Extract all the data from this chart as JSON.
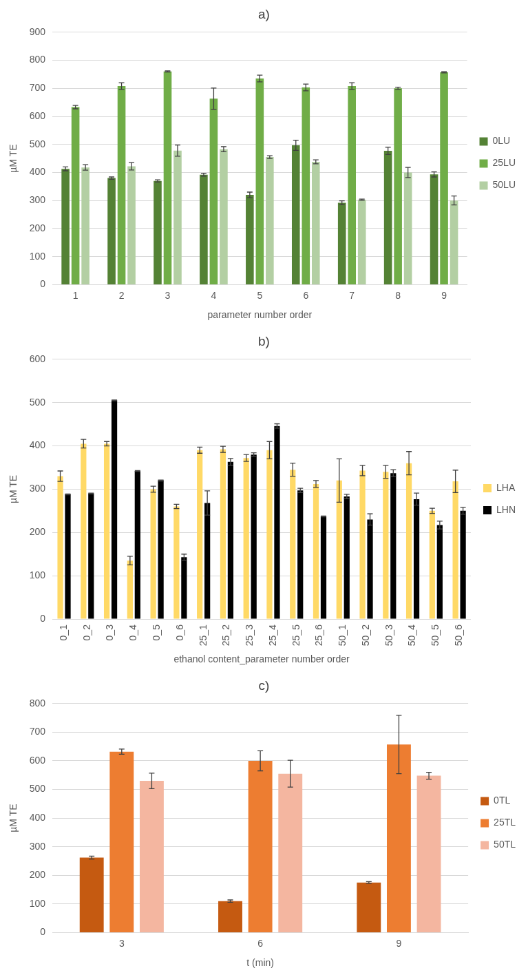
{
  "chart_data": [
    {
      "type": "bar",
      "title": "a)",
      "xlabel": "parameter number order",
      "ylabel": "µM TE",
      "categories": [
        "1",
        "2",
        "3",
        "4",
        "5",
        "6",
        "7",
        "8",
        "9"
      ],
      "ylim": [
        0,
        900
      ],
      "yticks": [
        0,
        100,
        200,
        300,
        400,
        500,
        600,
        700,
        800,
        900
      ],
      "grid": "y",
      "legend": "right",
      "series": [
        {
          "name": "0LU",
          "color": "#548235",
          "values": [
            413,
            380,
            370,
            392,
            320,
            497,
            292,
            477,
            393
          ],
          "errors": [
            7,
            4,
            4,
            5,
            10,
            18,
            7,
            13,
            9
          ]
        },
        {
          "name": "25LU",
          "color": "#70ad47",
          "values": [
            633,
            708,
            760,
            663,
            735,
            703,
            708,
            700,
            757
          ],
          "errors": [
            6,
            12,
            2,
            38,
            12,
            12,
            12,
            4,
            2
          ]
        },
        {
          "name": "50LU",
          "color": "#b3cfa3",
          "values": [
            418,
            422,
            478,
            483,
            455,
            438,
            303,
            400,
            300
          ],
          "errors": [
            10,
            13,
            20,
            9,
            5,
            7,
            2,
            18,
            16
          ]
        }
      ]
    },
    {
      "type": "bar",
      "title": "b)",
      "xlabel": "ethanol content_parameter number order",
      "ylabel": "µM TE",
      "categories": [
        "0_1",
        "0_2",
        "0_3",
        "0_4",
        "0_5",
        "0_6",
        "25_1",
        "25_2",
        "25_3",
        "25_4",
        "25_5",
        "25_6",
        "50_1",
        "50_2",
        "50_3",
        "50_4",
        "50_5",
        "50_6"
      ],
      "ylim": [
        0,
        600
      ],
      "yticks": [
        0,
        100,
        200,
        300,
        400,
        500,
        600
      ],
      "grid": "y",
      "legend": "right",
      "series": [
        {
          "name": "LHA",
          "color": "#ffd966",
          "values": [
            330,
            405,
            405,
            135,
            300,
            260,
            390,
            392,
            372,
            390,
            345,
            312,
            320,
            343,
            340,
            360,
            250,
            318
          ],
          "errors": [
            12,
            10,
            5,
            10,
            7,
            5,
            7,
            7,
            8,
            20,
            15,
            8,
            50,
            12,
            15,
            27,
            6,
            26
          ]
        },
        {
          "name": "LHN",
          "color": "#000000",
          "values": [
            288,
            290,
            505,
            342,
            320,
            143,
            268,
            363,
            380,
            446,
            297,
            237,
            283,
            230,
            337,
            277,
            217,
            250
          ],
          "errors": [
            1,
            1,
            1,
            1,
            1,
            7,
            28,
            8,
            4,
            5,
            5,
            1,
            5,
            13,
            8,
            14,
            9,
            8
          ]
        }
      ]
    },
    {
      "type": "bar",
      "title": "c)",
      "xlabel": "t (min)",
      "ylabel": "µM TE",
      "categories": [
        "3",
        "6",
        "9"
      ],
      "ylim": [
        0,
        800
      ],
      "yticks": [
        0,
        100,
        200,
        300,
        400,
        500,
        600,
        700,
        800
      ],
      "grid": "y",
      "legend": "right",
      "series": [
        {
          "name": "0TL",
          "color": "#c55a11",
          "values": [
            262,
            110,
            175
          ],
          "errors": [
            5,
            4,
            3
          ]
        },
        {
          "name": "25TL",
          "color": "#ed7d31",
          "values": [
            632,
            600,
            657
          ],
          "errors": [
            9,
            35,
            102
          ]
        },
        {
          "name": "50TL",
          "color": "#f4b6a0",
          "values": [
            530,
            555,
            548
          ],
          "errors": [
            27,
            47,
            12
          ]
        }
      ]
    }
  ]
}
